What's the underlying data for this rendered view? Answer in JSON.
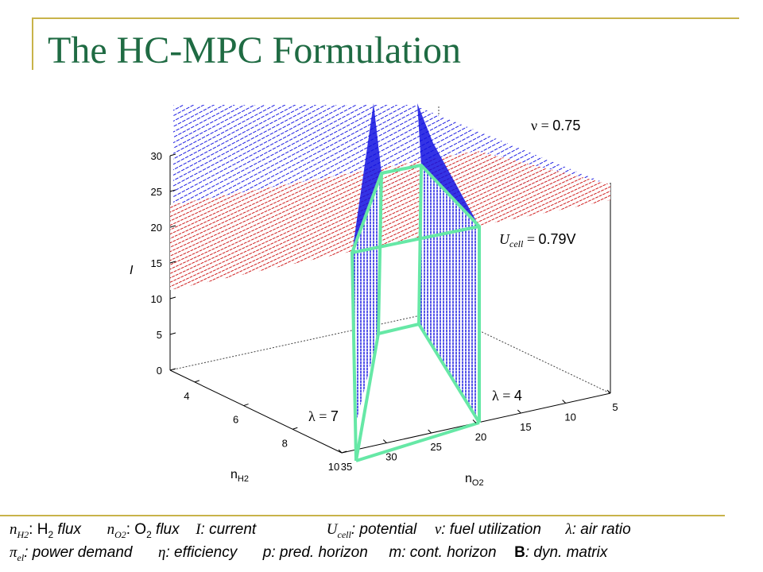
{
  "slide": {
    "title": "The HC-MPC Formulation"
  },
  "chart_data": {
    "type": "surface-3d",
    "zlabel": "I",
    "xlabel": "n",
    "xlabel_sub": "H2",
    "ylabel": "n",
    "ylabel_sub": "O2",
    "z_ticks": [
      "0",
      "5",
      "10",
      "15",
      "20",
      "25",
      "30"
    ],
    "x_ticks": [
      "4",
      "6",
      "8",
      "10"
    ],
    "y_ticks": [
      "35",
      "30",
      "25",
      "20",
      "15",
      "10",
      "5"
    ],
    "zlim": [
      0,
      30
    ],
    "xlim": [
      3,
      10
    ],
    "ylim": [
      35,
      5
    ],
    "grid": true,
    "annotations": {
      "nu": {
        "symbol": "ν",
        "eq": " = ",
        "value": "0.75"
      },
      "ucell": {
        "symbol": "U",
        "sub": "cell",
        "eq": " = ",
        "value": "0.79V"
      },
      "lambda_right": {
        "symbol": "λ",
        "eq": " = ",
        "value": "4"
      },
      "lambda_left": {
        "symbol": "λ",
        "eq": " = ",
        "value": "7"
      }
    },
    "colors": {
      "blue_surface": "#1010e0",
      "red_surface": "#cc1010",
      "region_outline": "#66e8a6",
      "axes": "#000000"
    }
  },
  "legend": {
    "line1": {
      "nh2_sym": "n",
      "nh2_sub": "H2",
      "nh2_text": ": H",
      "nh2_flux_sub": "2",
      "nh2_flux": " flux",
      "no2_sym": "n",
      "no2_sub": "O2",
      "no2_text": ": O",
      "no2_flux_sub": "2",
      "no2_flux": " flux",
      "i_sym": "I",
      "i_text": ": current",
      "u_sym": "U",
      "u_sub": "cell",
      "u_text": ": potential",
      "nu_sym": "ν",
      "nu_text": ": fuel utilization",
      "lam_sym": "λ",
      "lam_text": ": air ratio"
    },
    "line2": {
      "pi_sym": "π",
      "pi_sub": "el",
      "pi_text": ": power demand",
      "eta_sym": "η",
      "eta_text": ": efficiency",
      "p_text": "p: pred. horizon",
      "m_text": "m: cont. horizon",
      "b_sym": "B",
      "b_text": ": dyn. matrix"
    }
  }
}
